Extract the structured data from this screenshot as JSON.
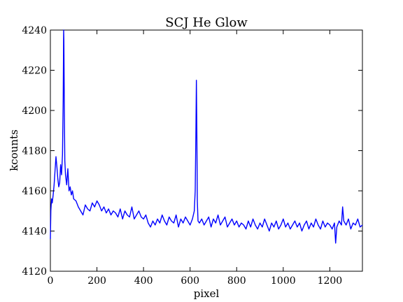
{
  "chart_data": {
    "type": "line",
    "title": "SCJ He Glow",
    "xlabel": "pixel",
    "ylabel": "kcounts",
    "xlim": [
      0,
      1340
    ],
    "ylim": [
      4120,
      4240
    ],
    "xticks": [
      0,
      200,
      400,
      600,
      800,
      1000,
      1200
    ],
    "yticks": [
      4120,
      4140,
      4160,
      4180,
      4200,
      4220,
      4240
    ],
    "xtick_labels": [
      "0",
      "200",
      "400",
      "600",
      "800",
      "1000",
      "1200"
    ],
    "ytick_labels": [
      "4120",
      "4140",
      "4160",
      "4180",
      "4200",
      "4220",
      "4240"
    ],
    "grid": false,
    "series": [
      {
        "color": "#0000ff",
        "x": [
          0,
          2,
          5,
          8,
          12,
          16,
          20,
          24,
          28,
          32,
          36,
          40,
          44,
          48,
          52,
          55,
          57,
          58,
          60,
          62,
          65,
          70,
          75,
          80,
          85,
          90,
          95,
          100,
          110,
          120,
          130,
          140,
          150,
          160,
          170,
          180,
          190,
          200,
          210,
          220,
          230,
          240,
          250,
          260,
          270,
          280,
          290,
          300,
          310,
          320,
          330,
          340,
          350,
          360,
          370,
          380,
          390,
          400,
          410,
          420,
          430,
          440,
          450,
          460,
          470,
          480,
          490,
          500,
          510,
          520,
          530,
          540,
          550,
          560,
          570,
          580,
          590,
          600,
          610,
          618,
          622,
          625,
          627,
          629,
          631,
          634,
          640,
          650,
          660,
          670,
          680,
          690,
          700,
          710,
          720,
          730,
          740,
          750,
          760,
          770,
          780,
          790,
          800,
          810,
          820,
          830,
          840,
          850,
          860,
          870,
          880,
          890,
          900,
          910,
          920,
          930,
          940,
          950,
          960,
          970,
          980,
          990,
          1000,
          1010,
          1020,
          1030,
          1040,
          1050,
          1060,
          1070,
          1080,
          1090,
          1100,
          1110,
          1120,
          1130,
          1140,
          1150,
          1160,
          1170,
          1180,
          1190,
          1200,
          1210,
          1220,
          1225,
          1230,
          1240,
          1250,
          1255,
          1260,
          1270,
          1280,
          1290,
          1300,
          1310,
          1320,
          1330,
          1340
        ],
        "y": [
          4136,
          4150,
          4156,
          4154,
          4158,
          4163,
          4170,
          4177,
          4172,
          4166,
          4162,
          4164,
          4173,
          4168,
          4178,
          4205,
          4240,
          4235,
          4200,
          4175,
          4168,
          4163,
          4171,
          4160,
          4162,
          4158,
          4160,
          4156,
          4155,
          4152,
          4150,
          4148,
          4153,
          4151,
          4150,
          4154,
          4152,
          4155,
          4153,
          4150,
          4152,
          4149,
          4151,
          4148,
          4150,
          4149,
          4147,
          4151,
          4146,
          4150,
          4148,
          4147,
          4152,
          4146,
          4148,
          4150,
          4147,
          4146,
          4148,
          4144,
          4142,
          4145,
          4143,
          4146,
          4144,
          4148,
          4145,
          4143,
          4147,
          4145,
          4144,
          4148,
          4142,
          4146,
          4144,
          4147,
          4145,
          4143,
          4146,
          4150,
          4160,
          4190,
          4215,
          4190,
          4155,
          4145,
          4144,
          4146,
          4143,
          4145,
          4147,
          4142,
          4146,
          4144,
          4148,
          4143,
          4145,
          4147,
          4142,
          4144,
          4146,
          4143,
          4145,
          4142,
          4144,
          4143,
          4141,
          4145,
          4142,
          4146,
          4143,
          4141,
          4144,
          4142,
          4146,
          4143,
          4140,
          4144,
          4142,
          4145,
          4141,
          4143,
          4146,
          4142,
          4144,
          4141,
          4143,
          4145,
          4142,
          4144,
          4140,
          4143,
          4145,
          4141,
          4144,
          4142,
          4146,
          4143,
          4141,
          4145,
          4142,
          4144,
          4143,
          4141,
          4144,
          4134,
          4142,
          4145,
          4143,
          4152,
          4145,
          4143,
          4146,
          4141,
          4144,
          4143,
          4146,
          4142,
          4143
        ]
      }
    ]
  }
}
